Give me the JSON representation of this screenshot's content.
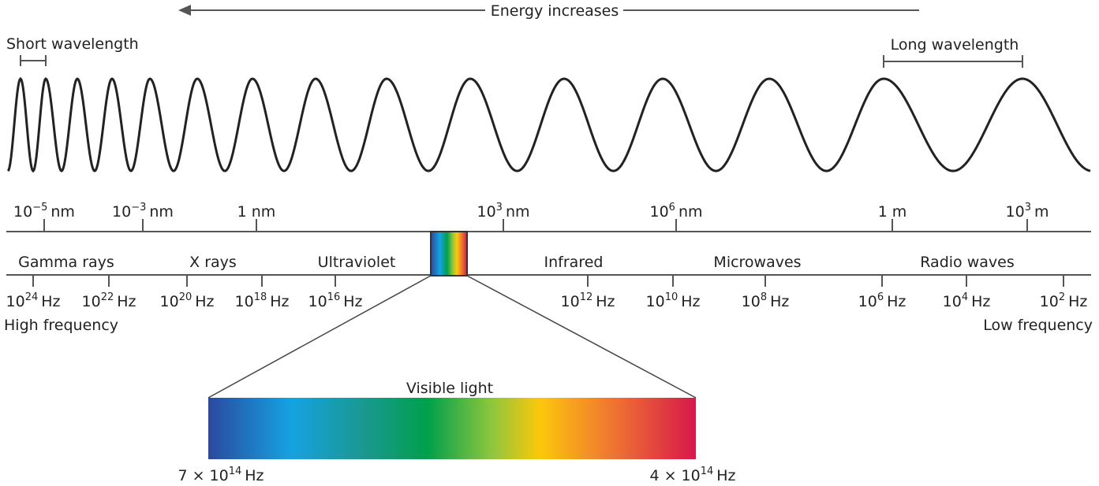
{
  "energy_label": "Energy increases",
  "short_wavelength": "Short wavelength",
  "long_wavelength": "Long wavelength",
  "wavelength_ticks": [
    {
      "base": "10",
      "exp": "−5",
      "unit": "nm"
    },
    {
      "base": "10",
      "exp": "−3",
      "unit": "nm"
    },
    {
      "base": "1",
      "unit": "nm"
    },
    {
      "base": "10",
      "exp": "3",
      "unit": "nm"
    },
    {
      "base": "10",
      "exp": "6",
      "unit": "nm"
    },
    {
      "base": "1",
      "unit": "m"
    },
    {
      "base": "10",
      "exp": "3",
      "unit": "m"
    }
  ],
  "bands": [
    "Gamma rays",
    "X rays",
    "Ultraviolet",
    "Infrared",
    "Microwaves",
    "Radio waves"
  ],
  "frequency_ticks": [
    {
      "base": "10",
      "exp": "24",
      "unit": "Hz"
    },
    {
      "base": "10",
      "exp": "22",
      "unit": "Hz"
    },
    {
      "base": "10",
      "exp": "20",
      "unit": "Hz"
    },
    {
      "base": "10",
      "exp": "18",
      "unit": "Hz"
    },
    {
      "base": "10",
      "exp": "16",
      "unit": "Hz"
    },
    {
      "base": "10",
      "exp": "12",
      "unit": "Hz"
    },
    {
      "base": "10",
      "exp": "10",
      "unit": "Hz"
    },
    {
      "base": "10",
      "exp": "8",
      "unit": "Hz"
    },
    {
      "base": "10",
      "exp": "6",
      "unit": "Hz"
    },
    {
      "base": "10",
      "exp": "4",
      "unit": "Hz"
    },
    {
      "base": "10",
      "exp": "2",
      "unit": "Hz"
    }
  ],
  "high_frequency": "High frequency",
  "low_frequency": "Low frequency",
  "visible_light": {
    "title": "Visible light",
    "left": {
      "coef": "7 ×",
      "base": "10",
      "exp": "14",
      "unit": "Hz"
    },
    "right": {
      "coef": "4 ×",
      "base": "10",
      "exp": "14",
      "unit": "Hz"
    }
  }
}
